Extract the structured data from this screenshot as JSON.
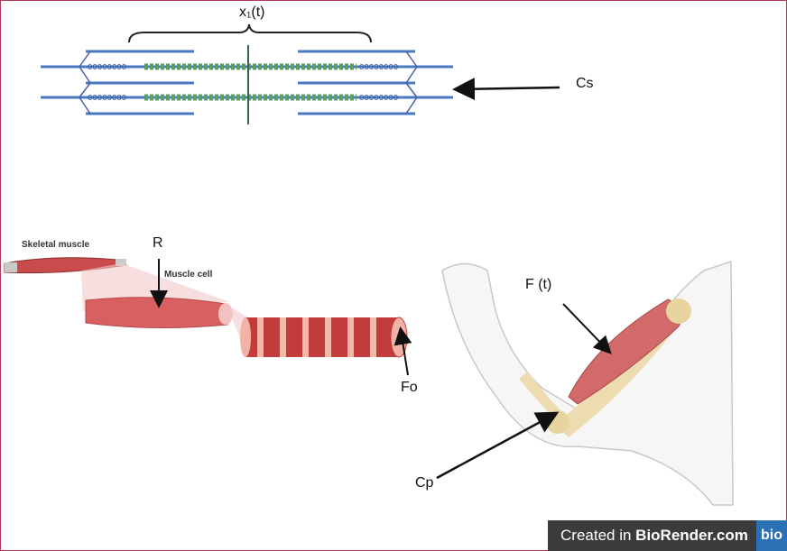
{
  "labels": {
    "x1": "x₁(t)",
    "cs": "Cs",
    "skeletal_muscle": "Skeletal muscle",
    "r": "R",
    "muscle_cell": "Muscle cell",
    "fo": "Fo",
    "ft": "F (t)",
    "cp": "Cp"
  },
  "watermark": {
    "prefix": "Created in ",
    "brand": "BioRender.com",
    "logo": "bio"
  },
  "colors": {
    "actin": "#4a78c2",
    "myosin": "#5a9e63",
    "muscle": "#c94b4b",
    "border": "#b33a55"
  }
}
